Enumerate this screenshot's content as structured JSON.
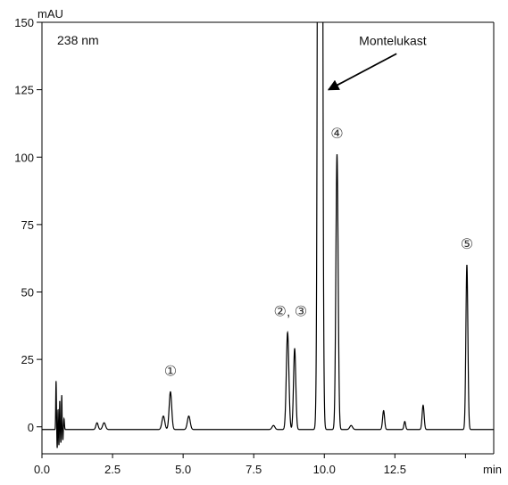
{
  "chart_data": {
    "type": "line",
    "title": "",
    "wavelength_label": "238 nm",
    "ylabel": "mAU",
    "xlabel": "min",
    "xlim": [
      0,
      16
    ],
    "ylim": [
      -10,
      150
    ],
    "x_ticks": [
      {
        "value": 0,
        "label": "0.0"
      },
      {
        "value": 2.5,
        "label": "2.5"
      },
      {
        "value": 5,
        "label": "5.0"
      },
      {
        "value": 7.5,
        "label": "7.5"
      },
      {
        "value": 10,
        "label": "10.0"
      },
      {
        "value": 12.5,
        "label": "12.5"
      },
      {
        "value": 15,
        "label": "min"
      }
    ],
    "y_ticks": [
      {
        "value": 0,
        "label": "0"
      },
      {
        "value": 25,
        "label": "25"
      },
      {
        "value": 50,
        "label": "50"
      },
      {
        "value": 75,
        "label": "75"
      },
      {
        "value": 100,
        "label": "100"
      },
      {
        "value": 125,
        "label": "125"
      },
      {
        "value": 150,
        "label": "150"
      }
    ],
    "grid": false,
    "series": [
      {
        "name": "",
        "color": "#000000",
        "baseline": -1,
        "peaks": [
          {
            "rt": 0.5,
            "height": 18,
            "width": 0.012
          },
          {
            "rt": 0.54,
            "height": -7,
            "width": 0.012
          },
          {
            "rt": 0.57,
            "height": 8,
            "width": 0.01
          },
          {
            "rt": 0.6,
            "height": -6,
            "width": 0.012
          },
          {
            "rt": 0.63,
            "height": 11,
            "width": 0.01
          },
          {
            "rt": 0.67,
            "height": -5,
            "width": 0.012
          },
          {
            "rt": 0.7,
            "height": 13,
            "width": 0.01
          },
          {
            "rt": 0.74,
            "height": -4,
            "width": 0.012
          },
          {
            "rt": 0.78,
            "height": 4,
            "width": 0.015
          },
          {
            "rt": 1.95,
            "height": 2.5,
            "width": 0.04
          },
          {
            "rt": 2.2,
            "height": 2.5,
            "width": 0.05
          },
          {
            "rt": 4.3,
            "height": 5,
            "width": 0.05
          },
          {
            "rt": 4.55,
            "height": 14,
            "width": 0.045
          },
          {
            "rt": 5.2,
            "height": 5,
            "width": 0.05
          },
          {
            "rt": 8.2,
            "height": 1.5,
            "width": 0.05
          },
          {
            "rt": 8.7,
            "height": 36,
            "width": 0.045
          },
          {
            "rt": 8.95,
            "height": 30,
            "width": 0.04
          },
          {
            "rt": 9.85,
            "height": 1200,
            "width": 0.05
          },
          {
            "rt": 10.45,
            "height": 102,
            "width": 0.04
          },
          {
            "rt": 10.95,
            "height": 1.5,
            "width": 0.05
          },
          {
            "rt": 12.1,
            "height": 7,
            "width": 0.035
          },
          {
            "rt": 12.85,
            "height": 3,
            "width": 0.03
          },
          {
            "rt": 13.5,
            "height": 9,
            "width": 0.035
          },
          {
            "rt": 15.05,
            "height": 61,
            "width": 0.035
          }
        ]
      }
    ],
    "annotations": [
      {
        "id": "peak-1",
        "text": "①",
        "x": 4.55,
        "y": 19
      },
      {
        "id": "peak-2-3",
        "text": "②, ③",
        "x": 8.8,
        "y": 41
      },
      {
        "id": "peak-4",
        "text": "④",
        "x": 10.45,
        "y": 107
      },
      {
        "id": "peak-5",
        "text": "⑤",
        "x": 15.05,
        "y": 66
      },
      {
        "id": "montelukast",
        "text": "Montelukast",
        "x": 11.8,
        "y": 140,
        "arrow_to_x": 10.15,
        "arrow_to_y": 126
      }
    ]
  }
}
